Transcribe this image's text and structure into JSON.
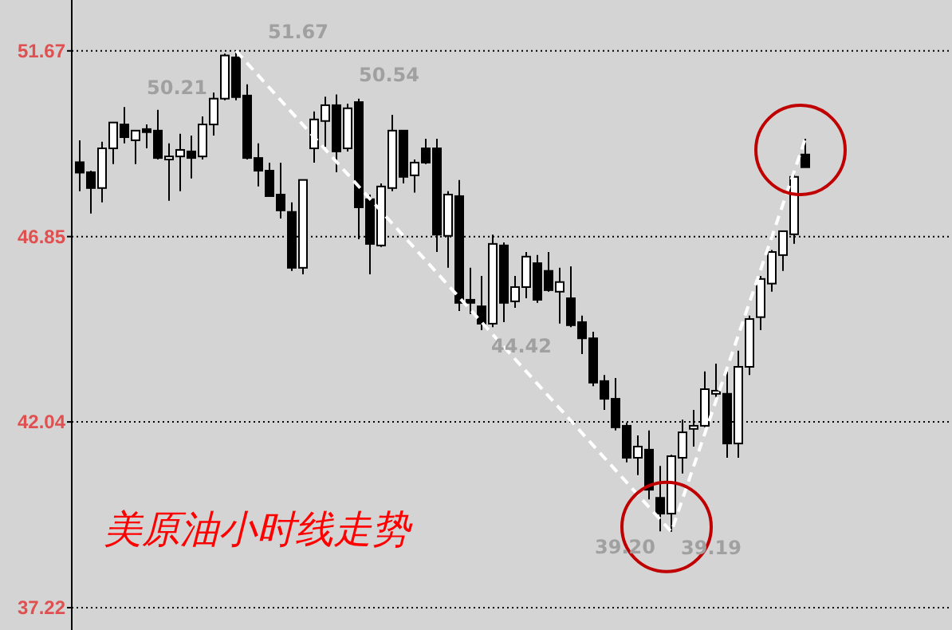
{
  "chart_data": {
    "type": "candlestick",
    "title": "美原油小时线走势",
    "categories": [
      null,
      null,
      null,
      null,
      null,
      null,
      null,
      null,
      null,
      null,
      null,
      null,
      null,
      null,
      null,
      null,
      null,
      null,
      null,
      null,
      null,
      null,
      null,
      null,
      null,
      null,
      null,
      null,
      null,
      null,
      null,
      null,
      null,
      null,
      null,
      null,
      null,
      null,
      null,
      null,
      null,
      null,
      null,
      null,
      null,
      null,
      null,
      null,
      null,
      null,
      null,
      null,
      null,
      null,
      null,
      null,
      null,
      null,
      null,
      null,
      null,
      null,
      null,
      null,
      null,
      null
    ],
    "ohlc": [
      [
        48.78,
        49.35,
        48.03,
        48.51
      ],
      [
        48.52,
        48.56,
        47.45,
        48.11
      ],
      [
        48.11,
        49.31,
        47.74,
        49.14
      ],
      [
        49.14,
        49.81,
        48.73,
        49.81
      ],
      [
        49.76,
        50.21,
        49.27,
        49.43
      ],
      [
        49.35,
        49.6,
        48.73,
        49.6
      ],
      [
        49.64,
        49.76,
        49.14,
        49.56
      ],
      [
        49.6,
        50.14,
        48.85,
        48.89
      ],
      [
        48.85,
        49.27,
        47.78,
        48.93
      ],
      [
        48.93,
        49.52,
        48.03,
        49.1
      ],
      [
        49.06,
        49.47,
        48.36,
        48.89
      ],
      [
        48.93,
        49.97,
        48.85,
        49.76
      ],
      [
        49.76,
        50.59,
        49.47,
        50.43
      ],
      [
        50.43,
        51.6,
        50.39,
        51.55
      ],
      [
        51.5,
        51.67,
        50.39,
        50.47
      ],
      [
        50.51,
        50.8,
        48.85,
        48.89
      ],
      [
        48.89,
        49.27,
        48.15,
        48.56
      ],
      [
        48.56,
        48.77,
        47.9,
        47.9
      ],
      [
        47.94,
        48.77,
        47.32,
        47.53
      ],
      [
        47.49,
        47.74,
        45.96,
        46.04
      ],
      [
        46.04,
        48.32,
        45.87,
        48.32
      ],
      [
        49.14,
        50.1,
        48.77,
        49.89
      ],
      [
        49.85,
        50.48,
        49.18,
        50.26
      ],
      [
        50.26,
        50.54,
        48.52,
        49.06
      ],
      [
        49.14,
        50.3,
        49.06,
        50.18
      ],
      [
        50.34,
        50.43,
        46.78,
        47.61
      ],
      [
        47.82,
        47.94,
        45.87,
        46.66
      ],
      [
        46.62,
        48.23,
        46.58,
        48.15
      ],
      [
        48.11,
        50.01,
        48.03,
        49.6
      ],
      [
        49.6,
        49.6,
        48.23,
        48.4
      ],
      [
        48.44,
        48.85,
        47.99,
        48.77
      ],
      [
        49.14,
        49.39,
        48.73,
        48.77
      ],
      [
        49.14,
        49.39,
        46.45,
        46.9
      ],
      [
        46.87,
        48.03,
        46.04,
        47.94
      ],
      [
        47.9,
        48.32,
        44.92,
        45.13
      ],
      [
        45.21,
        46.04,
        44.84,
        45.13
      ],
      [
        45.04,
        45.83,
        44.42,
        44.59
      ],
      [
        44.59,
        46.9,
        44.5,
        46.66
      ],
      [
        46.62,
        46.7,
        44.63,
        45.13
      ],
      [
        45.17,
        45.83,
        45.0,
        45.54
      ],
      [
        45.54,
        46.45,
        45.25,
        46.33
      ],
      [
        46.16,
        46.37,
        45.13,
        45.21
      ],
      [
        45.96,
        46.45,
        45.42,
        45.46
      ],
      [
        45.42,
        46.04,
        44.59,
        45.67
      ],
      [
        45.25,
        46.08,
        44.5,
        44.55
      ],
      [
        44.63,
        44.8,
        43.8,
        44.21
      ],
      [
        44.21,
        44.38,
        42.97,
        43.06
      ],
      [
        43.1,
        43.26,
        42.35,
        42.64
      ],
      [
        42.64,
        43.18,
        41.82,
        41.9
      ],
      [
        41.94,
        42.02,
        40.99,
        41.11
      ],
      [
        41.11,
        41.69,
        40.66,
        41.4
      ],
      [
        41.32,
        41.82,
        40.03,
        40.28
      ],
      [
        40.07,
        40.9,
        39.2,
        39.66
      ],
      [
        39.66,
        41.19,
        39.19,
        41.15
      ],
      [
        41.11,
        42.1,
        40.7,
        41.77
      ],
      [
        41.86,
        42.35,
        41.4,
        41.94
      ],
      [
        41.94,
        43.35,
        41.9,
        42.89
      ],
      [
        42.77,
        43.55,
        42.6,
        42.85
      ],
      [
        42.77,
        43.35,
        41.11,
        41.48
      ],
      [
        41.48,
        43.89,
        41.11,
        43.47
      ],
      [
        43.47,
        44.8,
        43.26,
        44.71
      ],
      [
        44.76,
        45.83,
        44.42,
        45.75
      ],
      [
        45.63,
        46.5,
        45.42,
        46.45
      ],
      [
        46.37,
        46.99,
        45.96,
        46.99
      ],
      [
        46.91,
        48.48,
        46.66,
        48.4
      ],
      [
        48.98,
        49.39,
        48.65,
        48.65
      ]
    ],
    "series": [
      {
        "type": "line",
        "color": "#ffffff",
        "values": [
          null,
          null,
          null,
          null,
          null,
          null,
          null,
          null,
          null,
          null,
          null,
          null,
          null,
          null,
          51.67,
          null,
          null,
          null,
          null,
          null,
          null,
          null,
          null,
          null,
          null,
          null,
          null,
          null,
          null,
          null,
          null,
          null,
          null,
          null,
          null,
          null,
          null,
          null,
          null,
          null,
          null,
          null,
          null,
          null,
          null,
          null,
          null,
          null,
          null,
          null,
          null,
          null,
          null,
          39.19,
          null,
          null,
          null,
          null,
          null,
          null,
          null,
          null,
          null,
          null,
          null,
          49.39
        ]
      }
    ],
    "line_style": "dashed",
    "ylim": [
      36.64,
      52.99
    ],
    "yticks": [
      37.22,
      42.04,
      46.85,
      51.67
    ],
    "grid": "y",
    "annotations": [
      "50.21",
      "51.67",
      "50.54",
      "44.42",
      "39.20",
      "39.19"
    ]
  }
}
